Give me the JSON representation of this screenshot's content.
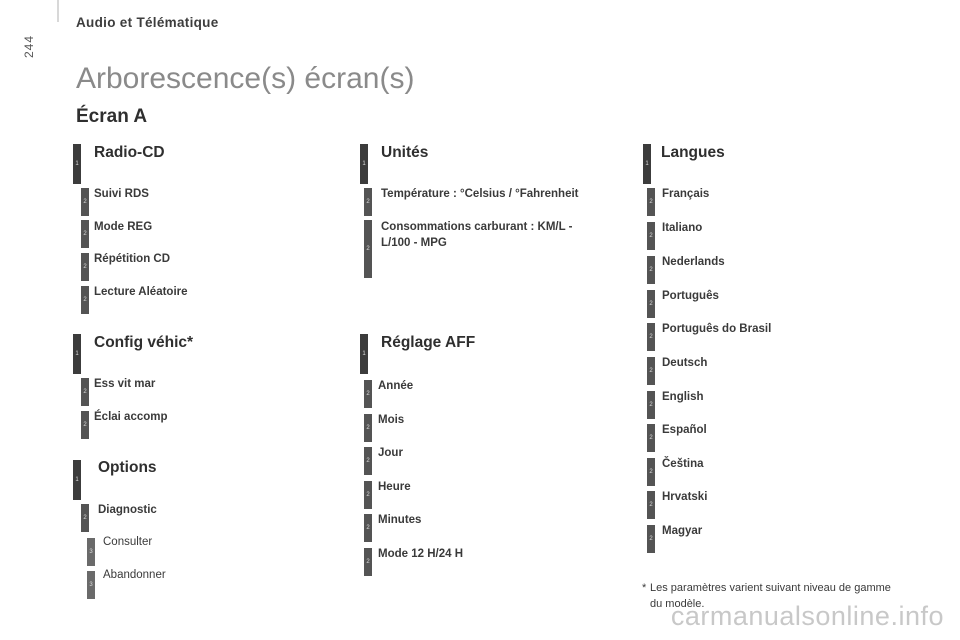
{
  "header": {
    "title": "Audio et Télématique",
    "page_number": "244"
  },
  "page_title": "Arborescence(s) écran(s)",
  "section_title": "Écran A",
  "columns": {
    "radio": {
      "title": "Radio-CD",
      "level": "1",
      "items": [
        {
          "label": "Suivi RDS",
          "level": "2"
        },
        {
          "label": "Mode REG",
          "level": "2"
        },
        {
          "label": "Répétition CD",
          "level": "2"
        },
        {
          "label": "Lecture Aléatoire",
          "level": "2"
        }
      ]
    },
    "config": {
      "title": "Config véhic*",
      "level": "1",
      "items": [
        {
          "label": "Ess vit mar",
          "level": "2"
        },
        {
          "label": "Éclai accomp",
          "level": "2"
        }
      ]
    },
    "options": {
      "title": "Options",
      "level": "1",
      "items": [
        {
          "label": "Diagnostic",
          "level": "2"
        },
        {
          "label": "Consulter",
          "level": "3"
        },
        {
          "label": "Abandonner",
          "level": "3"
        }
      ]
    },
    "unites": {
      "title": "Unités",
      "level": "1",
      "items": [
        {
          "label": "Température : °Celsius / °Fahrenheit",
          "level": "2"
        },
        {
          "label": "Consommations carburant : KM/L - L/100 - MPG",
          "level": "2"
        }
      ]
    },
    "reglage": {
      "title": "Réglage AFF",
      "level": "1",
      "items": [
        {
          "label": "Année",
          "level": "2"
        },
        {
          "label": "Mois",
          "level": "2"
        },
        {
          "label": "Jour",
          "level": "2"
        },
        {
          "label": "Heure",
          "level": "2"
        },
        {
          "label": "Minutes",
          "level": "2"
        },
        {
          "label": "Mode 12 H/24 H",
          "level": "2"
        }
      ]
    },
    "langues": {
      "title": "Langues",
      "level": "1",
      "items": [
        {
          "label": "Français",
          "level": "2"
        },
        {
          "label": "Italiano",
          "level": "2"
        },
        {
          "label": "Nederlands",
          "level": "2"
        },
        {
          "label": "Português",
          "level": "2"
        },
        {
          "label": "Português do Brasil",
          "level": "2"
        },
        {
          "label": "Deutsch",
          "level": "2"
        },
        {
          "label": "English",
          "level": "2"
        },
        {
          "label": "Español",
          "level": "2"
        },
        {
          "label": "Čeština",
          "level": "2"
        },
        {
          "label": "Hrvatski",
          "level": "2"
        },
        {
          "label": "Magyar",
          "level": "2"
        }
      ]
    }
  },
  "footnote": {
    "star": "*",
    "text": "Les paramètres varient suivant niveau de gamme du modèle."
  },
  "watermark": "carmanualsonline.info"
}
